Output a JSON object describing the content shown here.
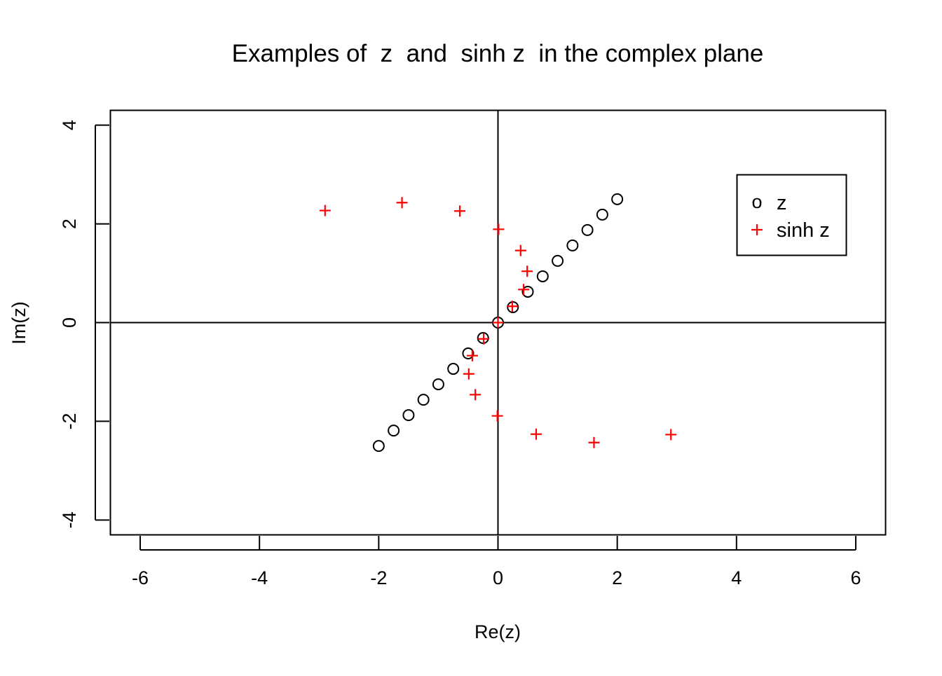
{
  "chart_data": {
    "type": "scatter",
    "title": "Examples of  z  and  sinh z  in the complex plane",
    "xlabel": "Re(z)",
    "ylabel": "Im(z)",
    "xlim": [
      -6.5,
      6.5
    ],
    "ylim": [
      -4.3,
      4.3
    ],
    "x_ticks": [
      -6,
      -4,
      -2,
      0,
      2,
      4,
      6
    ],
    "y_ticks": [
      -4,
      -2,
      0,
      2,
      4
    ],
    "x_tick_labels": [
      "-6",
      "-4",
      "-2",
      "0",
      "2",
      "4",
      "6"
    ],
    "y_tick_labels": [
      "-4",
      "-2",
      "0",
      "2",
      "4"
    ],
    "reference_lines": {
      "x": 0,
      "y": 0
    },
    "grid": false,
    "legend_position": "top-right",
    "series": [
      {
        "name": "z",
        "marker": "o",
        "color": "#000000",
        "points": [
          [
            -2.0,
            -2.5
          ],
          [
            -1.75,
            -2.1875
          ],
          [
            -1.5,
            -1.875
          ],
          [
            -1.25,
            -1.5625
          ],
          [
            -1.0,
            -1.25
          ],
          [
            -0.75,
            -0.9375
          ],
          [
            -0.5,
            -0.625
          ],
          [
            -0.25,
            -0.3125
          ],
          [
            0.0,
            0.0
          ],
          [
            0.25,
            0.3125
          ],
          [
            0.5,
            0.625
          ],
          [
            0.75,
            0.9375
          ],
          [
            1.0,
            1.25
          ],
          [
            1.25,
            1.5625
          ],
          [
            1.5,
            1.875
          ],
          [
            1.75,
            2.1875
          ],
          [
            2.0,
            2.5
          ]
        ]
      },
      {
        "name": "sinh z",
        "marker": "+",
        "color": "#ff0000",
        "points": [
          [
            2.9,
            -2.27
          ],
          [
            1.61,
            -2.43
          ],
          [
            0.64,
            -2.26
          ],
          [
            -0.01,
            -1.89
          ],
          [
            -0.38,
            -1.46
          ],
          [
            -0.49,
            -1.04
          ],
          [
            -0.43,
            -0.67
          ],
          [
            -0.24,
            -0.33
          ],
          [
            0.0,
            0.0
          ],
          [
            0.24,
            0.33
          ],
          [
            0.43,
            0.67
          ],
          [
            0.49,
            1.04
          ],
          [
            0.38,
            1.46
          ],
          [
            0.01,
            1.89
          ],
          [
            -0.64,
            2.26
          ],
          [
            -1.61,
            2.43
          ],
          [
            -2.9,
            2.27
          ]
        ]
      }
    ]
  },
  "legend": {
    "items": [
      {
        "label": "z",
        "symbol": "o"
      },
      {
        "label": "sinh z",
        "symbol": "+"
      }
    ]
  }
}
